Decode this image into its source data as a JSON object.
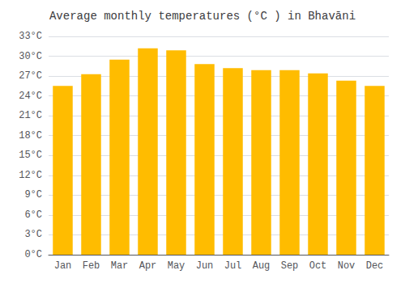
{
  "chart_data": {
    "type": "bar",
    "title": "Average monthly temperatures (°C ) in Bhavāni",
    "categories": [
      "Jan",
      "Feb",
      "Mar",
      "Apr",
      "May",
      "Jun",
      "Jul",
      "Aug",
      "Sep",
      "Oct",
      "Nov",
      "Dec"
    ],
    "values": [
      25.5,
      27.3,
      29.5,
      31.2,
      30.9,
      28.8,
      28.2,
      27.9,
      27.9,
      27.4,
      26.3,
      25.5
    ],
    "color": "#FFBC00",
    "ylim": [
      0,
      33
    ],
    "yticks": [
      {
        "value": 0,
        "label": "0°C"
      },
      {
        "value": 3,
        "label": "3°C"
      },
      {
        "value": 6,
        "label": "6°C"
      },
      {
        "value": 9,
        "label": "9°C"
      },
      {
        "value": 12,
        "label": "12°C"
      },
      {
        "value": 15,
        "label": "15°C"
      },
      {
        "value": 18,
        "label": "18°C"
      },
      {
        "value": 21,
        "label": "21°C"
      },
      {
        "value": 24,
        "label": "24°C"
      },
      {
        "value": 27,
        "label": "27°C"
      },
      {
        "value": 30,
        "label": "30°C"
      },
      {
        "value": 33,
        "label": "33°C"
      }
    ],
    "grid": true
  }
}
